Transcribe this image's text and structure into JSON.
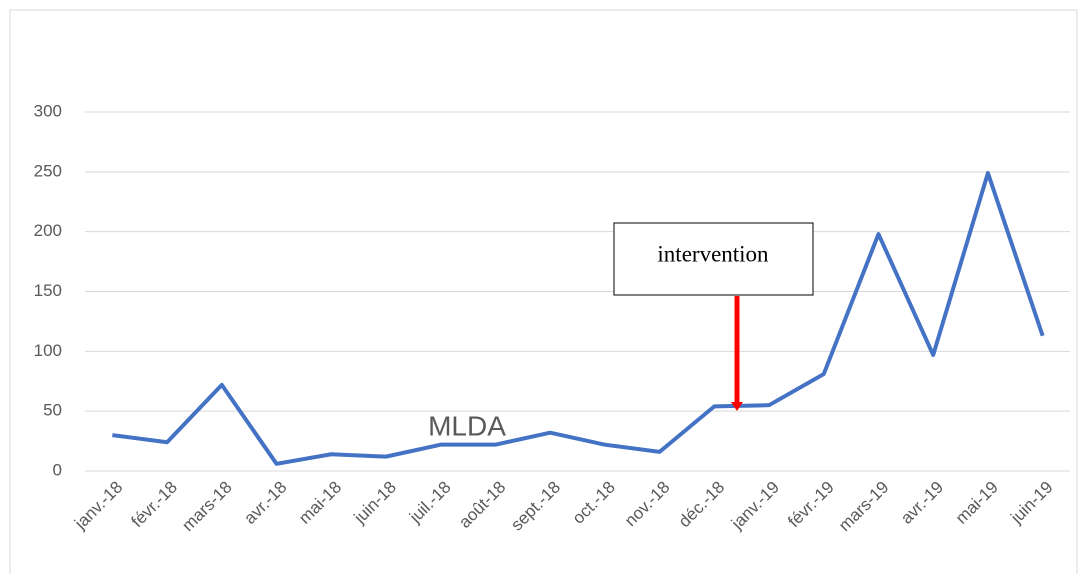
{
  "chart_data": {
    "type": "line",
    "categories": [
      "janv.-18",
      "févr.-18",
      "mars-18",
      "avr.-18",
      "mai-18",
      "juin-18",
      "juil.-18",
      "août-18",
      "sept.-18",
      "oct.-18",
      "nov.-18",
      "déc.-18",
      "janv.-19",
      "févr.-19",
      "mars-19",
      "avr.-19",
      "mai-19",
      "juin-19"
    ],
    "values": [
      30,
      24,
      72,
      6,
      14,
      12,
      22,
      22,
      32,
      22,
      16,
      54,
      55,
      81,
      198,
      97,
      249,
      113
    ],
    "color": "#4472c4",
    "ylim": [
      0,
      300
    ],
    "yticks": [
      0,
      50,
      100,
      150,
      200,
      250,
      300
    ],
    "grid": true,
    "annotations": [
      "intervention",
      "MLDA"
    ]
  }
}
